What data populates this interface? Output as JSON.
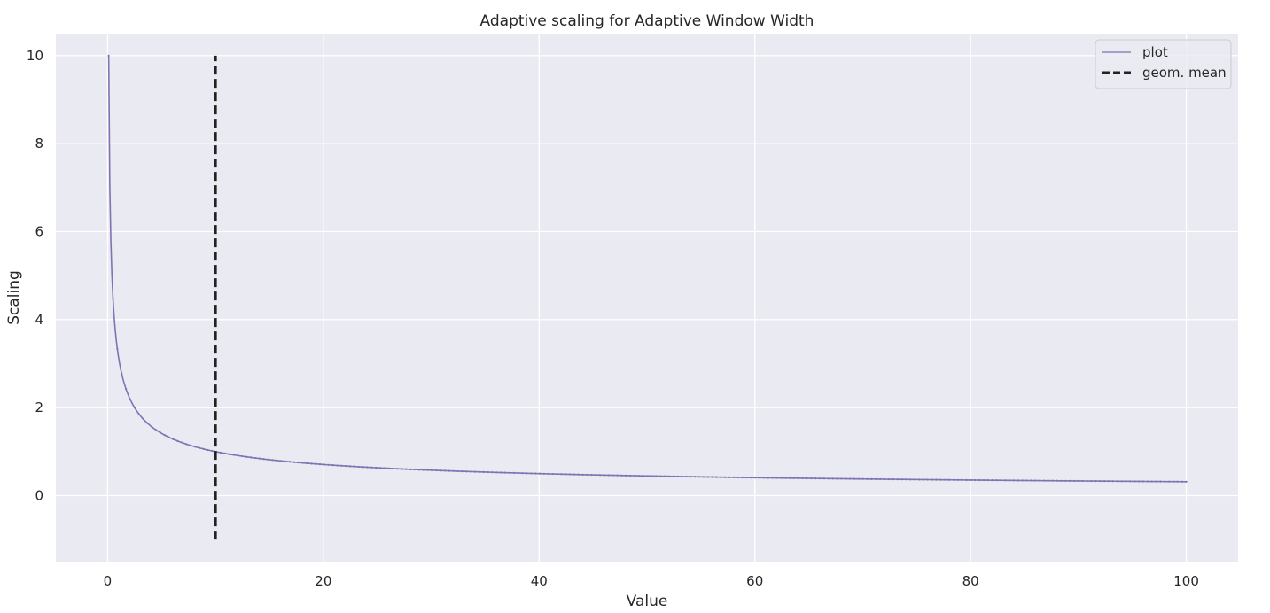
{
  "chart_data": {
    "type": "line",
    "title": "Adaptive scaling for Adaptive Window Width",
    "xlabel": "Value",
    "ylabel": "Scaling",
    "xlim": [
      -4.8,
      104.8
    ],
    "ylim": [
      -1.5,
      10.5
    ],
    "xticks": [
      0,
      20,
      40,
      60,
      80,
      100
    ],
    "yticks": [
      0,
      2,
      4,
      6,
      8,
      10
    ],
    "xtick_labels": [
      "0",
      "20",
      "40",
      "60",
      "80",
      "100"
    ],
    "ytick_labels": [
      "0",
      "2",
      "4",
      "6",
      "8",
      "10"
    ],
    "grid": true,
    "legend_position": "top-right",
    "background_color": "#eaeaf2",
    "grid_color": "#ffffff",
    "series": [
      {
        "name": "plot",
        "color": "#8172b3",
        "style": "solid-with-point-markers",
        "function": "sqrt(10 / x)",
        "x_range": [
          0.1,
          100
        ],
        "points": [
          [
            0.1,
            10.0
          ],
          [
            0.2,
            7.07
          ],
          [
            0.3,
            5.77
          ],
          [
            0.5,
            4.47
          ],
          [
            0.75,
            3.65
          ],
          [
            1,
            3.16
          ],
          [
            1.5,
            2.58
          ],
          [
            2,
            2.24
          ],
          [
            3,
            1.83
          ],
          [
            4,
            1.58
          ],
          [
            5,
            1.41
          ],
          [
            7.5,
            1.15
          ],
          [
            10,
            1.0
          ],
          [
            15,
            0.82
          ],
          [
            20,
            0.71
          ],
          [
            30,
            0.58
          ],
          [
            40,
            0.5
          ],
          [
            50,
            0.45
          ],
          [
            60,
            0.41
          ],
          [
            70,
            0.38
          ],
          [
            80,
            0.35
          ],
          [
            90,
            0.33
          ],
          [
            100,
            0.32
          ]
        ]
      },
      {
        "name": "geom. mean",
        "color": "#222222",
        "style": "dashed",
        "x": 10,
        "y_range": [
          -1.0,
          10.0
        ]
      }
    ]
  }
}
